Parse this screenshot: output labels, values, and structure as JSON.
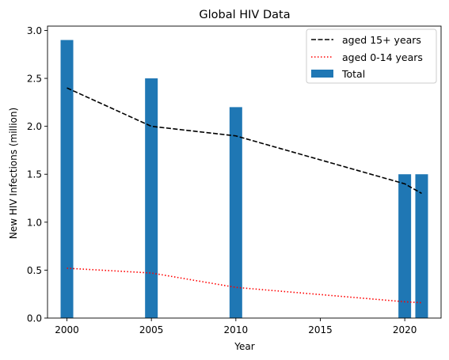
{
  "chart_data": {
    "type": "bar",
    "title": "Global HIV Data",
    "xlabel": "Year",
    "ylabel": "New HIV Infections (million)",
    "xlim": [
      1998.85,
      2022.15
    ],
    "ylim": [
      0,
      3.045
    ],
    "xticks": [
      2000,
      2005,
      2010,
      2015,
      2020
    ],
    "yticks": [
      0.0,
      0.5,
      1.0,
      1.5,
      2.0,
      2.5,
      3.0
    ],
    "ytick_labels": [
      "0.0",
      "0.5",
      "1.0",
      "1.5",
      "2.0",
      "2.5",
      "3.0"
    ],
    "grid": false,
    "legend_position": "top-right",
    "bars": {
      "name": "Total",
      "color": "#1f77b4",
      "x": [
        2000,
        2005,
        2010,
        2020,
        2021
      ],
      "values": [
        2.9,
        2.5,
        2.2,
        1.5,
        1.5
      ]
    },
    "series": [
      {
        "name": "aged 15+ years",
        "style": "dashed",
        "color": "#000000",
        "x": [
          2000,
          2005,
          2010,
          2020,
          2021
        ],
        "values": [
          2.4,
          2.0,
          1.9,
          1.4,
          1.3
        ]
      },
      {
        "name": "aged 0-14 years",
        "style": "dotted",
        "color": "#ff0000",
        "x": [
          2000,
          2005,
          2010,
          2020,
          2021
        ],
        "values": [
          0.52,
          0.47,
          0.32,
          0.17,
          0.16
        ]
      }
    ]
  }
}
